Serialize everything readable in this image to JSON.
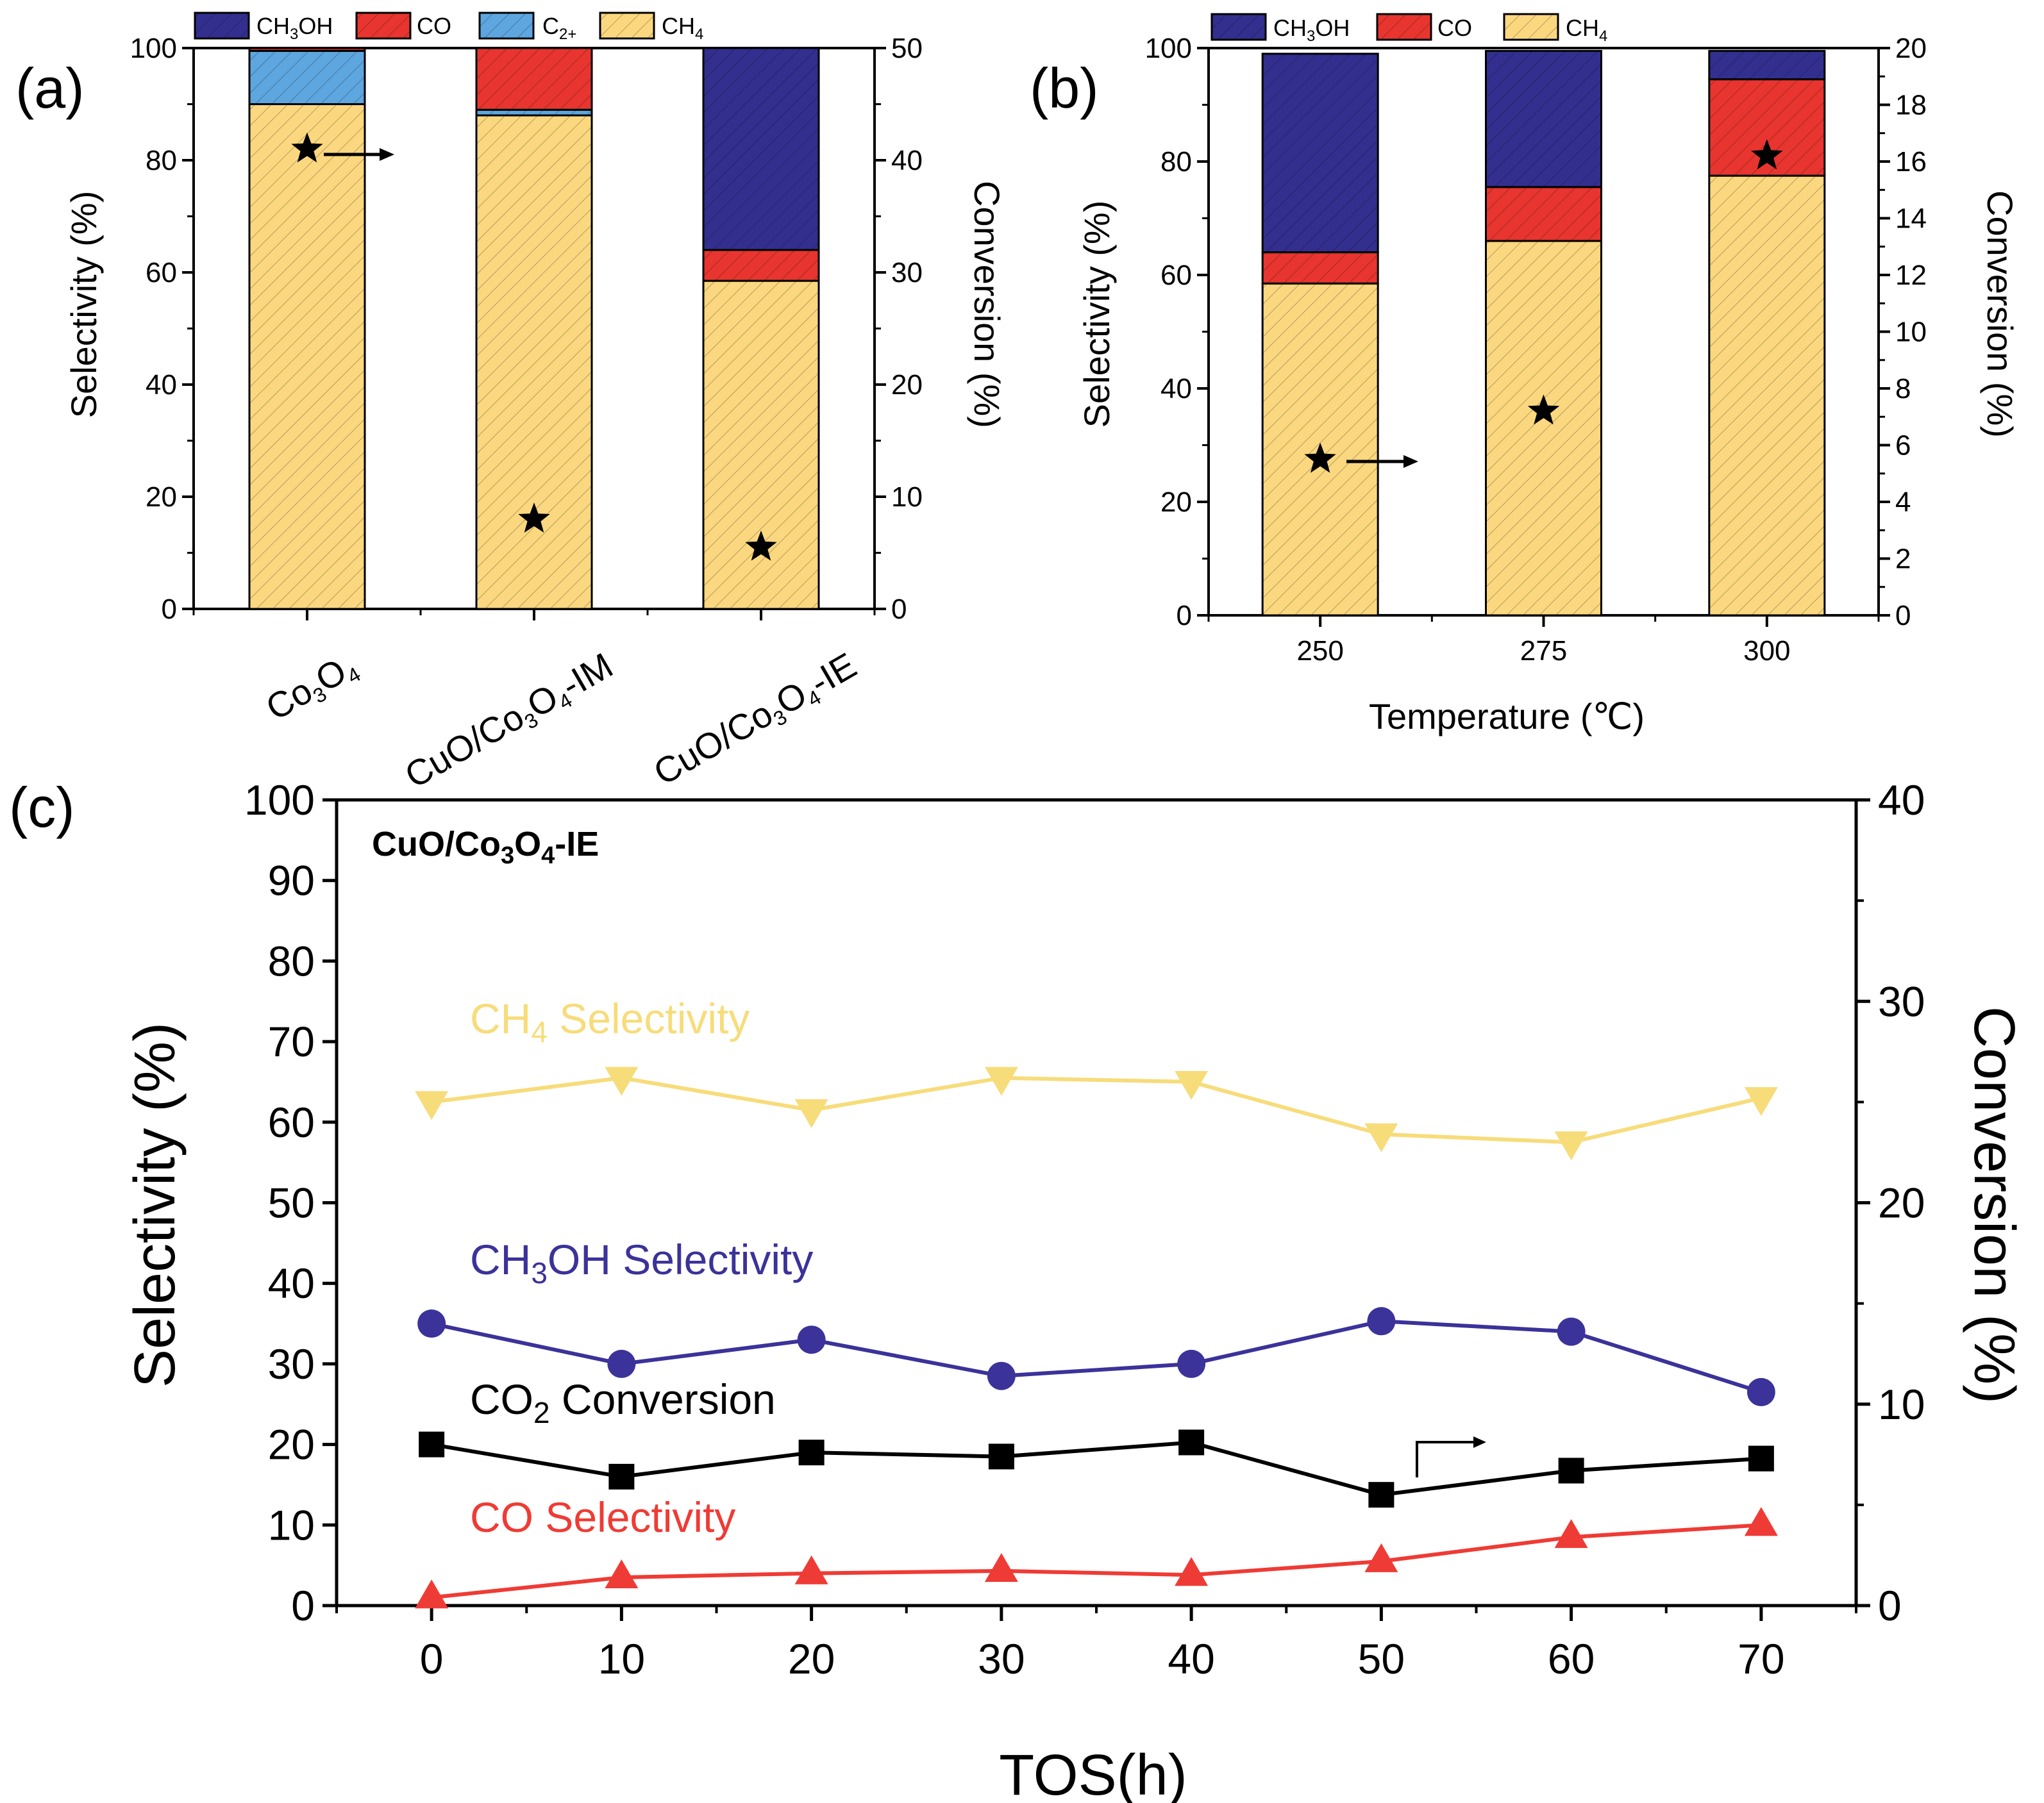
{
  "panels": {
    "a": {
      "label": "(a)"
    },
    "b": {
      "label": "(b)"
    },
    "c": {
      "label": "(c)"
    }
  },
  "colors": {
    "CH3OH": "#332f8f",
    "CO": "#e8352f",
    "C2+": "#5ea6df",
    "CH4": "#fbd87f",
    "ch4_line": "#f7dc7a",
    "ch3oh_line": "#3b329a",
    "co2_line": "#000000",
    "co_line": "#ef3b35"
  },
  "chart_data": [
    {
      "id": "a",
      "type": "bar",
      "stacked": true,
      "legend": {
        "items": [
          "CH3OH",
          "CO",
          "C2+",
          "CH4"
        ]
      },
      "categories": [
        "Co3O4",
        "CuO/Co3O4-IM",
        "CuO/Co3O4-IE"
      ],
      "series": [
        {
          "name": "CH4",
          "values": [
            90,
            88,
            58.5
          ]
        },
        {
          "name": "C2+",
          "values": [
            9.5,
            1,
            0
          ]
        },
        {
          "name": "CO",
          "values": [
            0.5,
            11,
            5.5
          ]
        },
        {
          "name": "CH3OH",
          "values": [
            0,
            0,
            36
          ]
        }
      ],
      "conversion": [
        41,
        8,
        5.5
      ],
      "ylabel": "Selectivity (%)",
      "y2label": "Conversion (%)",
      "ylim": [
        0,
        100
      ],
      "y2lim": [
        0,
        50
      ],
      "yticks": [
        0,
        20,
        40,
        60,
        80,
        100
      ],
      "y2ticks": [
        0,
        10,
        20,
        30,
        40,
        50
      ]
    },
    {
      "id": "b",
      "type": "bar",
      "stacked": true,
      "legend": {
        "items": [
          "CH3OH",
          "CO",
          "CH4"
        ]
      },
      "categories": [
        "250",
        "275",
        "300"
      ],
      "series": [
        {
          "name": "CH4",
          "values": [
            58.5,
            66,
            77.5
          ]
        },
        {
          "name": "CO",
          "values": [
            5.5,
            9.5,
            17
          ]
        },
        {
          "name": "CH3OH",
          "values": [
            35,
            24,
            5
          ]
        }
      ],
      "conversion": [
        5.5,
        7.2,
        16.2
      ],
      "xlabel": "Temperature (℃)",
      "ylabel": "Selectivity (%)",
      "y2label": "Conversion (%)",
      "ylim": [
        0,
        100
      ],
      "y2lim": [
        0,
        20
      ],
      "yticks": [
        0,
        20,
        40,
        60,
        80,
        100
      ],
      "y2ticks": [
        0,
        2,
        4,
        6,
        8,
        10,
        12,
        14,
        16,
        18,
        20
      ]
    },
    {
      "id": "c",
      "type": "line",
      "title": "CuO/Co3O4-IE",
      "x": [
        0,
        10,
        20,
        30,
        40,
        50,
        60,
        70
      ],
      "series": [
        {
          "name": "CH4 Selectivity",
          "axis": "left",
          "marker": "triangle-down",
          "values": [
            62.5,
            65.5,
            61.5,
            65.5,
            65,
            58.5,
            57.5,
            63
          ]
        },
        {
          "name": "CH3OH Selectivity",
          "axis": "left",
          "marker": "circle",
          "values": [
            35,
            30,
            33,
            28.5,
            30,
            35.3,
            34,
            26.5
          ]
        },
        {
          "name": "CO2 Conversion",
          "axis": "right",
          "marker": "square",
          "values": [
            8,
            6.4,
            7.6,
            7.4,
            8.1,
            5.5,
            6.7,
            7.3
          ]
        },
        {
          "name": "CO Selectivity",
          "axis": "left",
          "marker": "triangle-up",
          "values": [
            1,
            3.5,
            4,
            4.3,
            3.8,
            5.5,
            8.5,
            10
          ]
        }
      ],
      "xlabel": "TOS(h)",
      "ylabel": "Selectivity (%)",
      "y2label": "Conversion (%)",
      "xlim": [
        -5,
        75
      ],
      "ylim": [
        0,
        100
      ],
      "y2lim": [
        0,
        40
      ],
      "xticks": [
        0,
        10,
        20,
        30,
        40,
        50,
        60,
        70
      ],
      "yticks": [
        0,
        10,
        20,
        30,
        40,
        50,
        60,
        70,
        80,
        90,
        100
      ],
      "y2ticks": [
        0,
        10,
        20,
        30,
        40
      ]
    }
  ]
}
